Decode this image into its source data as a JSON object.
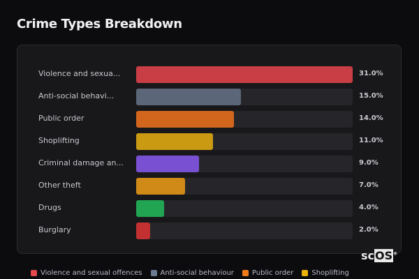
{
  "chart_data": {
    "type": "bar",
    "orientation": "horizontal",
    "title": "Crime Types Breakdown",
    "categories": [
      "Violence and sexual offences",
      "Anti-social behaviour",
      "Public order",
      "Shoplifting",
      "Criminal damage and arson",
      "Other theft",
      "Drugs",
      "Burglary"
    ],
    "display_labels": [
      "Violence and sexua...",
      "Anti-social behavi...",
      "Public order",
      "Shoplifting",
      "Criminal damage an...",
      "Other theft",
      "Drugs",
      "Burglary"
    ],
    "values": [
      31.0,
      15.0,
      14.0,
      11.0,
      9.0,
      7.0,
      4.0,
      2.0
    ],
    "value_labels": [
      "31.0%",
      "15.0%",
      "14.0%",
      "11.0%",
      "9.0%",
      "7.0%",
      "4.0%",
      "2.0%"
    ],
    "colors": [
      "#c93e44",
      "#5b6678",
      "#d2661c",
      "#c99a12",
      "#7a50d2",
      "#d08a18",
      "#22a552",
      "#c23031"
    ],
    "xlim": [
      0,
      31
    ],
    "unit": "%",
    "legend": [
      {
        "label": "Violence and sexual offences",
        "color": "#e5484d"
      },
      {
        "label": "Anti-social behaviour",
        "color": "#6b7a90"
      },
      {
        "label": "Public order",
        "color": "#f07a1a"
      },
      {
        "label": "Shoplifting",
        "color": "#eab308"
      }
    ],
    "legend_position": "bottom"
  },
  "watermark": {
    "text_a": "sc",
    "text_b": "OS",
    "mark": "®"
  }
}
